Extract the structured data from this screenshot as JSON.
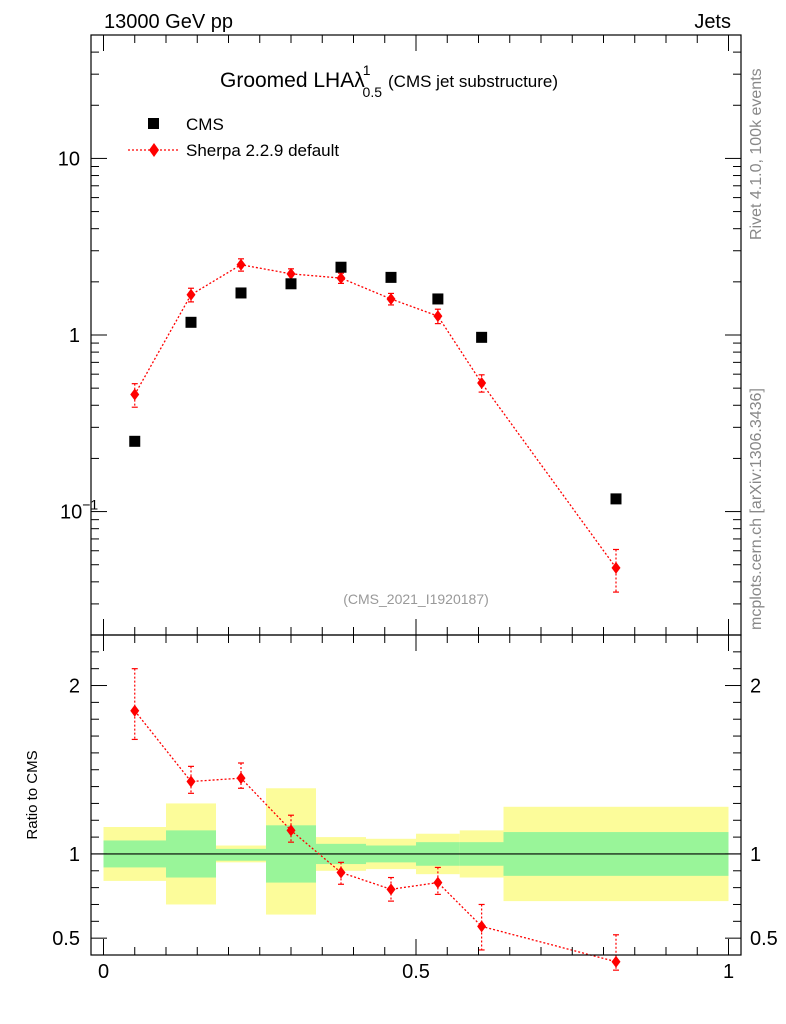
{
  "header": {
    "left": "13000 GeV pp",
    "right": "Jets"
  },
  "side_labels": {
    "top": "Rivet 4.1.0,  100k events",
    "bottom": "mcplots.cern.ch [arXiv:1306.3436]"
  },
  "chart_data": {
    "type": "scatter",
    "title": {
      "main": "Groomed LHA",
      "lambda": "λ",
      "sup": "1",
      "sub": "0.5",
      "note": "(CMS jet substructure)"
    },
    "analysis_id": "(CMS_2021_I1920187)",
    "legend": {
      "placement": "top-left",
      "entries": [
        {
          "key": "data",
          "label": "CMS"
        },
        {
          "key": "mc",
          "label": "Sherpa 2.2.9 default"
        }
      ]
    },
    "main_panel": {
      "yscale": "log",
      "ylim": [
        0.02,
        50
      ],
      "xlim": [
        -0.02,
        1.02
      ],
      "yticks": [
        {
          "value": 10,
          "label": "10"
        },
        {
          "value": 1,
          "label": "1"
        },
        {
          "value": 0.1,
          "label": "10",
          "exp": "−1"
        }
      ],
      "series": [
        {
          "name": "CMS",
          "color": "#000000",
          "marker": "square",
          "x": [
            0.05,
            0.14,
            0.22,
            0.3,
            0.38,
            0.46,
            0.535,
            0.605,
            0.82
          ],
          "y": [
            0.25,
            1.18,
            1.73,
            1.95,
            2.42,
            2.12,
            1.6,
            0.97,
            0.118
          ]
        },
        {
          "name": "Sherpa 2.2.9 default",
          "color": "#ff0000",
          "marker": "diamond",
          "line": "dotted",
          "x": [
            0.05,
            0.14,
            0.22,
            0.3,
            0.38,
            0.46,
            0.535,
            0.605,
            0.82
          ],
          "y": [
            0.46,
            1.69,
            2.5,
            2.22,
            2.1,
            1.6,
            1.28,
            0.535,
            0.048
          ],
          "err": [
            0.07,
            0.15,
            0.2,
            0.15,
            0.14,
            0.12,
            0.12,
            0.06,
            0.013
          ]
        }
      ]
    },
    "ratio_panel": {
      "ylabel": "Ratio to CMS",
      "ylim": [
        0.4,
        2.3
      ],
      "yticks": [
        {
          "value": 2,
          "label": "2"
        },
        {
          "value": 1,
          "label": "1"
        },
        {
          "value": 0.5,
          "label": "0.5"
        }
      ],
      "xticks": [
        {
          "value": 0,
          "label": "0"
        },
        {
          "value": 0.5,
          "label": "0.5"
        },
        {
          "value": 1,
          "label": "1"
        }
      ],
      "bands": [
        {
          "x0": 0.0,
          "x1": 0.1,
          "in": [
            0.92,
            1.08
          ],
          "out": [
            0.84,
            1.16
          ]
        },
        {
          "x0": 0.1,
          "x1": 0.18,
          "in": [
            0.86,
            1.14
          ],
          "out": [
            0.7,
            1.3
          ]
        },
        {
          "x0": 0.18,
          "x1": 0.26,
          "in": [
            0.96,
            1.03
          ],
          "out": [
            0.95,
            1.05
          ]
        },
        {
          "x0": 0.26,
          "x1": 0.34,
          "in": [
            0.83,
            1.17
          ],
          "out": [
            0.64,
            1.39
          ]
        },
        {
          "x0": 0.34,
          "x1": 0.42,
          "in": [
            0.94,
            1.06
          ],
          "out": [
            0.9,
            1.1
          ]
        },
        {
          "x0": 0.42,
          "x1": 0.5,
          "in": [
            0.95,
            1.05
          ],
          "out": [
            0.91,
            1.09
          ]
        },
        {
          "x0": 0.5,
          "x1": 0.57,
          "in": [
            0.93,
            1.07
          ],
          "out": [
            0.88,
            1.12
          ]
        },
        {
          "x0": 0.57,
          "x1": 0.64,
          "in": [
            0.93,
            1.07
          ],
          "out": [
            0.86,
            1.14
          ]
        },
        {
          "x0": 0.64,
          "x1": 1.0,
          "in": [
            0.87,
            1.13
          ],
          "out": [
            0.72,
            1.28
          ]
        }
      ],
      "band_colors": {
        "inner": "#99f599",
        "outer": "#fcfc9a"
      },
      "reference": 1.0,
      "ratio": {
        "x": [
          0.05,
          0.14,
          0.22,
          0.3,
          0.38,
          0.46,
          0.535,
          0.605,
          0.82
        ],
        "y": [
          1.85,
          1.43,
          1.45,
          1.14,
          0.89,
          0.79,
          0.83,
          0.57,
          0.36
        ],
        "err_lo": [
          0.17,
          0.07,
          0.06,
          0.07,
          0.07,
          0.07,
          0.07,
          0.14,
          0.05
        ],
        "err_hi": [
          0.25,
          0.09,
          0.09,
          0.09,
          0.06,
          0.07,
          0.09,
          0.13,
          0.16
        ]
      }
    }
  }
}
